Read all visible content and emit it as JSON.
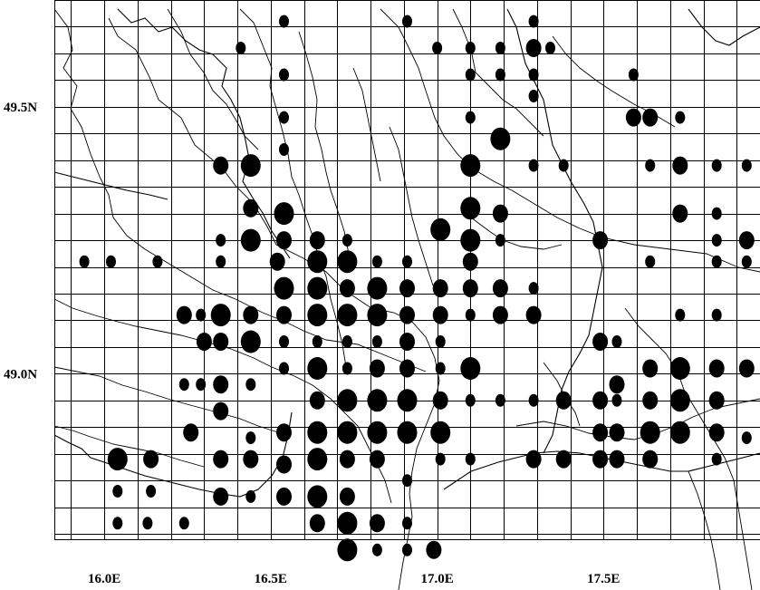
{
  "map": {
    "lon_range": [
      15.85,
      17.97
    ],
    "lat_range": [
      49.7,
      48.69
    ],
    "x_ticks": [
      {
        "value": 16.0,
        "label": "16.0E"
      },
      {
        "value": 16.5,
        "label": "16.5E"
      },
      {
        "value": 17.0,
        "label": "17.0E"
      },
      {
        "value": 17.5,
        "label": "17.5E"
      }
    ],
    "y_ticks": [
      {
        "value": 49.5,
        "label": "49.5N"
      },
      {
        "value": 49.0,
        "label": "49.0N"
      }
    ],
    "grid": true,
    "grid_lon_step": 0.1,
    "grid_lat_step": 0.05
  },
  "colors": {
    "background": "#ffffff",
    "ink": "#000000"
  },
  "sites": [
    [
      15.94,
      49.21,
      1
    ],
    [
      16.02,
      49.21,
      1
    ],
    [
      16.16,
      49.21,
      1
    ],
    [
      16.04,
      48.84,
      3
    ],
    [
      16.14,
      48.84,
      2
    ],
    [
      16.04,
      48.78,
      1
    ],
    [
      16.14,
      48.78,
      1
    ],
    [
      16.04,
      48.72,
      1
    ],
    [
      16.13,
      48.72,
      1
    ],
    [
      16.24,
      48.72,
      1
    ],
    [
      16.24,
      49.11,
      2
    ],
    [
      16.29,
      49.11,
      1
    ],
    [
      16.3,
      49.06,
      2
    ],
    [
      16.24,
      48.98,
      1
    ],
    [
      16.29,
      48.98,
      1
    ],
    [
      16.26,
      48.89,
      2
    ],
    [
      16.35,
      49.11,
      3
    ],
    [
      16.35,
      49.06,
      2
    ],
    [
      16.35,
      48.98,
      2
    ],
    [
      16.35,
      48.93,
      2
    ],
    [
      16.35,
      48.84,
      2
    ],
    [
      16.35,
      48.77,
      2
    ],
    [
      16.35,
      49.25,
      1
    ],
    [
      16.35,
      49.21,
      1
    ],
    [
      16.35,
      49.39,
      2
    ],
    [
      16.44,
      49.39,
      3
    ],
    [
      16.44,
      49.31,
      2
    ],
    [
      16.44,
      49.25,
      3
    ],
    [
      16.44,
      49.11,
      2
    ],
    [
      16.44,
      49.06,
      3
    ],
    [
      16.44,
      48.98,
      1
    ],
    [
      16.44,
      48.88,
      1
    ],
    [
      16.44,
      48.84,
      2
    ],
    [
      16.44,
      48.77,
      1
    ],
    [
      16.41,
      49.61,
      1
    ],
    [
      16.54,
      49.66,
      1
    ],
    [
      16.54,
      49.56,
      1
    ],
    [
      16.54,
      49.48,
      1
    ],
    [
      16.54,
      49.42,
      1
    ],
    [
      16.54,
      49.3,
      3
    ],
    [
      16.54,
      49.25,
      2
    ],
    [
      16.52,
      49.21,
      2
    ],
    [
      16.54,
      49.16,
      3
    ],
    [
      16.54,
      49.11,
      2
    ],
    [
      16.54,
      49.06,
      1
    ],
    [
      16.54,
      49.01,
      1
    ],
    [
      16.54,
      48.89,
      2
    ],
    [
      16.54,
      48.83,
      2
    ],
    [
      16.54,
      48.77,
      2
    ],
    [
      16.64,
      49.25,
      2
    ],
    [
      16.64,
      49.21,
      3
    ],
    [
      16.64,
      49.16,
      3
    ],
    [
      16.64,
      49.11,
      3
    ],
    [
      16.64,
      49.06,
      1
    ],
    [
      16.64,
      49.01,
      3
    ],
    [
      16.64,
      48.95,
      2
    ],
    [
      16.64,
      48.89,
      3
    ],
    [
      16.64,
      48.84,
      3
    ],
    [
      16.64,
      48.77,
      3
    ],
    [
      16.64,
      48.72,
      2
    ],
    [
      16.73,
      49.25,
      1
    ],
    [
      16.73,
      49.21,
      3
    ],
    [
      16.73,
      49.16,
      2
    ],
    [
      16.73,
      49.11,
      3
    ],
    [
      16.73,
      49.06,
      1
    ],
    [
      16.73,
      49.01,
      1
    ],
    [
      16.73,
      48.95,
      3
    ],
    [
      16.73,
      48.89,
      3
    ],
    [
      16.73,
      48.84,
      2
    ],
    [
      16.73,
      48.77,
      2
    ],
    [
      16.73,
      48.72,
      3
    ],
    [
      16.73,
      48.67,
      3
    ],
    [
      16.82,
      49.21,
      1
    ],
    [
      16.82,
      49.16,
      3
    ],
    [
      16.82,
      49.11,
      3
    ],
    [
      16.82,
      49.06,
      1
    ],
    [
      16.82,
      49.01,
      2
    ],
    [
      16.82,
      48.95,
      3
    ],
    [
      16.82,
      48.89,
      3
    ],
    [
      16.82,
      48.84,
      2
    ],
    [
      16.82,
      48.72,
      2
    ],
    [
      16.82,
      48.67,
      1
    ],
    [
      16.91,
      49.21,
      1
    ],
    [
      16.91,
      49.16,
      2
    ],
    [
      16.91,
      49.11,
      2
    ],
    [
      16.91,
      49.06,
      2
    ],
    [
      16.91,
      49.01,
      2
    ],
    [
      16.91,
      48.95,
      3
    ],
    [
      16.91,
      48.89,
      3
    ],
    [
      16.91,
      48.8,
      1
    ],
    [
      16.91,
      48.72,
      1
    ],
    [
      16.91,
      48.67,
      1
    ],
    [
      16.91,
      49.66,
      1
    ],
    [
      16.95,
      49.72,
      2
    ],
    [
      17.01,
      49.27,
      3
    ],
    [
      17.01,
      49.16,
      2
    ],
    [
      17.01,
      49.11,
      2
    ],
    [
      17.01,
      49.06,
      1
    ],
    [
      17.01,
      49.01,
      1
    ],
    [
      17.01,
      48.95,
      2
    ],
    [
      17.01,
      48.89,
      3
    ],
    [
      17.01,
      48.84,
      1
    ],
    [
      16.99,
      48.67,
      2
    ],
    [
      17.0,
      49.61,
      1
    ],
    [
      17.1,
      49.61,
      1
    ],
    [
      17.1,
      49.56,
      1
    ],
    [
      17.1,
      49.48,
      1
    ],
    [
      17.1,
      49.39,
      3
    ],
    [
      17.1,
      49.31,
      3
    ],
    [
      17.1,
      49.25,
      3
    ],
    [
      17.1,
      49.21,
      2
    ],
    [
      17.1,
      49.16,
      2
    ],
    [
      17.1,
      49.11,
      1
    ],
    [
      17.1,
      49.01,
      3
    ],
    [
      17.1,
      48.95,
      1
    ],
    [
      17.1,
      48.84,
      1
    ],
    [
      17.19,
      49.61,
      1
    ],
    [
      17.19,
      49.56,
      1
    ],
    [
      17.19,
      49.44,
      3
    ],
    [
      17.19,
      49.3,
      2
    ],
    [
      17.19,
      49.25,
      1
    ],
    [
      17.19,
      49.16,
      2
    ],
    [
      17.19,
      49.11,
      2
    ],
    [
      17.19,
      48.95,
      1
    ],
    [
      17.29,
      49.66,
      1
    ],
    [
      17.29,
      49.61,
      2
    ],
    [
      17.29,
      49.56,
      1
    ],
    [
      17.29,
      49.52,
      1
    ],
    [
      17.29,
      49.39,
      1
    ],
    [
      17.29,
      49.11,
      2
    ],
    [
      17.29,
      49.16,
      1
    ],
    [
      17.29,
      48.95,
      1
    ],
    [
      17.29,
      48.84,
      2
    ],
    [
      17.34,
      49.61,
      1
    ],
    [
      17.38,
      49.39,
      1
    ],
    [
      17.38,
      48.95,
      2
    ],
    [
      17.38,
      48.84,
      2
    ],
    [
      17.49,
      49.25,
      2
    ],
    [
      17.49,
      49.06,
      2
    ],
    [
      17.49,
      48.95,
      2
    ],
    [
      17.49,
      48.89,
      2
    ],
    [
      17.49,
      48.84,
      2
    ],
    [
      17.54,
      49.06,
      1
    ],
    [
      17.54,
      48.98,
      2
    ],
    [
      17.54,
      48.95,
      1
    ],
    [
      17.54,
      48.89,
      2
    ],
    [
      17.54,
      48.84,
      2
    ],
    [
      17.59,
      49.56,
      1
    ],
    [
      17.59,
      49.48,
      2
    ],
    [
      17.64,
      49.48,
      2
    ],
    [
      17.64,
      49.39,
      1
    ],
    [
      17.64,
      49.21,
      1
    ],
    [
      17.64,
      49.01,
      2
    ],
    [
      17.64,
      48.95,
      2
    ],
    [
      17.64,
      48.89,
      3
    ],
    [
      17.64,
      48.84,
      2
    ],
    [
      17.73,
      49.48,
      1
    ],
    [
      17.73,
      49.39,
      2
    ],
    [
      17.73,
      49.3,
      2
    ],
    [
      17.73,
      49.11,
      1
    ],
    [
      17.73,
      49.01,
      3
    ],
    [
      17.73,
      48.95,
      3
    ],
    [
      17.73,
      48.89,
      3
    ],
    [
      17.84,
      49.39,
      1
    ],
    [
      17.84,
      49.3,
      1
    ],
    [
      17.84,
      49.25,
      1
    ],
    [
      17.84,
      49.21,
      1
    ],
    [
      17.84,
      49.11,
      1
    ],
    [
      17.84,
      49.01,
      2
    ],
    [
      17.84,
      48.95,
      2
    ],
    [
      17.84,
      48.89,
      2
    ],
    [
      17.84,
      48.84,
      1
    ],
    [
      17.93,
      49.01,
      2
    ],
    [
      17.93,
      48.88,
      1
    ],
    [
      17.93,
      49.39,
      1
    ],
    [
      17.93,
      49.25,
      2
    ],
    [
      17.93,
      49.21,
      1
    ],
    [
      18.03,
      49.56,
      1
    ],
    [
      18.03,
      49.48,
      1
    ],
    [
      18.03,
      49.39,
      1
    ],
    [
      18.03,
      49.3,
      1
    ],
    [
      18.03,
      49.11,
      1
    ],
    [
      18.03,
      49.06,
      1
    ]
  ]
}
